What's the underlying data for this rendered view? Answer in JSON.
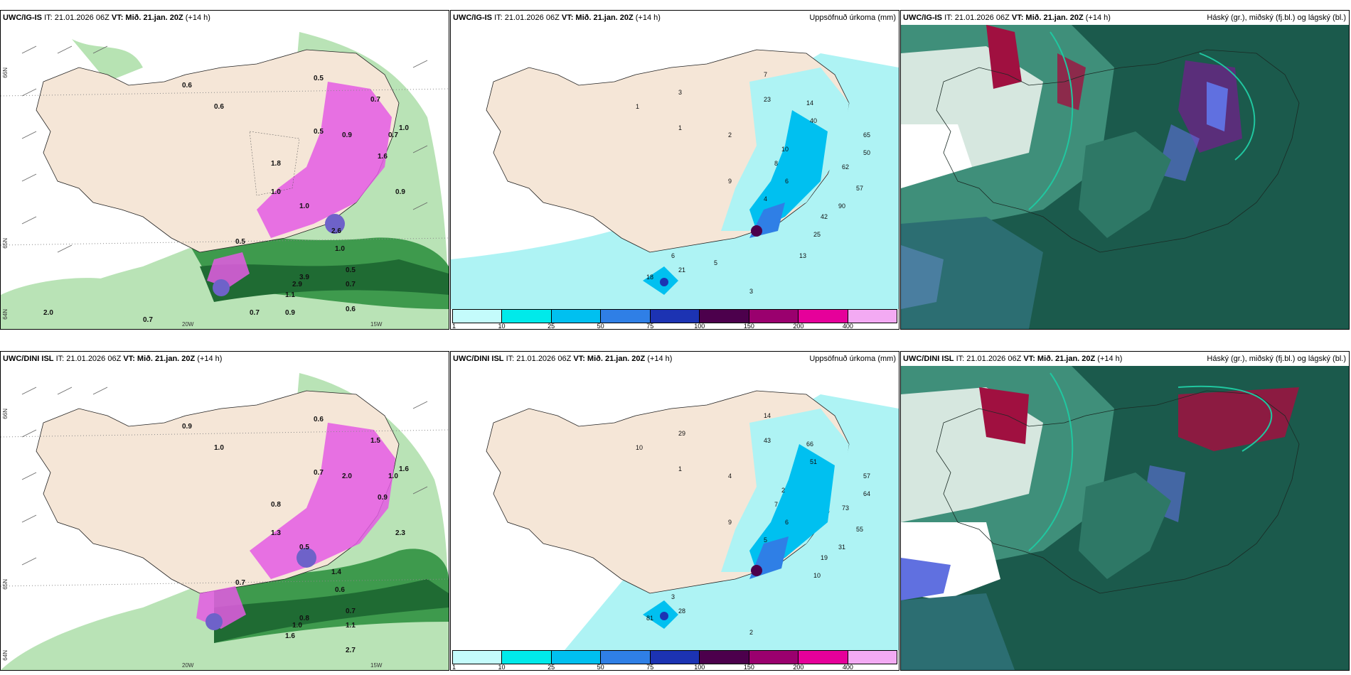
{
  "rows": [
    {
      "model": "UWC/IG-IS",
      "it": "IT: 21.01.2026 06Z",
      "vt_label": "VT:",
      "vt": "Mið. 21.jan. 20Z",
      "lead": "(+14 h)",
      "wind_panel": {
        "lat_labels": [
          "66N",
          "65N",
          "64N"
        ],
        "lon_labels": [
          "20W",
          "15W"
        ],
        "values": [
          "0.6",
          "0.5",
          "0.6",
          "0.7",
          "0.5",
          "1.0",
          "0.9",
          "1.8",
          "1.6",
          "1.0",
          "1.0",
          "0.5",
          "2.6",
          "0.7",
          "0.9",
          "3.9",
          "1.1",
          "2.9",
          "0.5",
          "1.0",
          "0.7",
          "0.6",
          "0.9",
          "0.7",
          "2.0",
          "0.7",
          "0.6"
        ]
      },
      "precip_panel": {
        "title": "Uppsöfnuð úrkoma (mm)",
        "values": [
          "1",
          "3",
          "7",
          "23",
          "14",
          "40",
          "65",
          "50",
          "62",
          "57",
          "90",
          "42",
          "25",
          "10",
          "8",
          "6",
          "4",
          "9",
          "2",
          "1",
          "21",
          "6",
          "18",
          "3",
          "5",
          "13"
        ]
      },
      "cloud_panel": {
        "title": "Háský (gr.), miðský (fj.bl.) og lágský (bl.)"
      }
    },
    {
      "model": "UWC/DINI ISL",
      "it": "IT: 21.01.2026 06Z",
      "vt_label": "VT:",
      "vt": "Mið. 21.jan. 20Z",
      "lead": "(+14 h)",
      "wind_panel": {
        "lat_labels": [
          "66N",
          "65N",
          "64N"
        ],
        "lon_labels": [
          "20W",
          "15W"
        ],
        "values": [
          "0.9",
          "0.6",
          "1.0",
          "1.5",
          "0.7",
          "1.6",
          "2.0",
          "0.8",
          "0.9",
          "1.3",
          "0.5",
          "0.7",
          "1.4",
          "1.0",
          "2.3",
          "0.8",
          "1.6",
          "1.0",
          "0.7",
          "0.6",
          "1.1",
          "2.7"
        ]
      },
      "precip_panel": {
        "title": "Uppsöfnuð úrkoma (mm)",
        "values": [
          "10",
          "29",
          "14",
          "43",
          "66",
          "51",
          "57",
          "64",
          "73",
          "55",
          "31",
          "19",
          "10",
          "2",
          "7",
          "6",
          "5",
          "9",
          "4",
          "1",
          "28",
          "3",
          "81",
          "2"
        ]
      },
      "cloud_panel": {
        "title": "Háský (gr.), miðský (fj.bl.) og lágský (bl.)"
      }
    }
  ],
  "colorbar": {
    "labels": [
      "1",
      "10",
      "25",
      "50",
      "75",
      "100",
      "150",
      "200",
      "400"
    ],
    "colors": [
      "#c4fbfb",
      "#00eaea",
      "#00c0f0",
      "#2f7fe6",
      "#1c33b3",
      "#4c004c",
      "#9a006e",
      "#e6009a",
      "#f3aaf3"
    ]
  },
  "colors": {
    "land": "#f5e6d7",
    "sea_precip": "#aef3f4",
    "cloud_high": "#a01040",
    "cloud_mid": "#6070e0",
    "cloud_low": "#1b5a4c",
    "green_light": "#a3d9a0",
    "green_dark": "#1f6b33",
    "magenta": "#e45ae4"
  }
}
